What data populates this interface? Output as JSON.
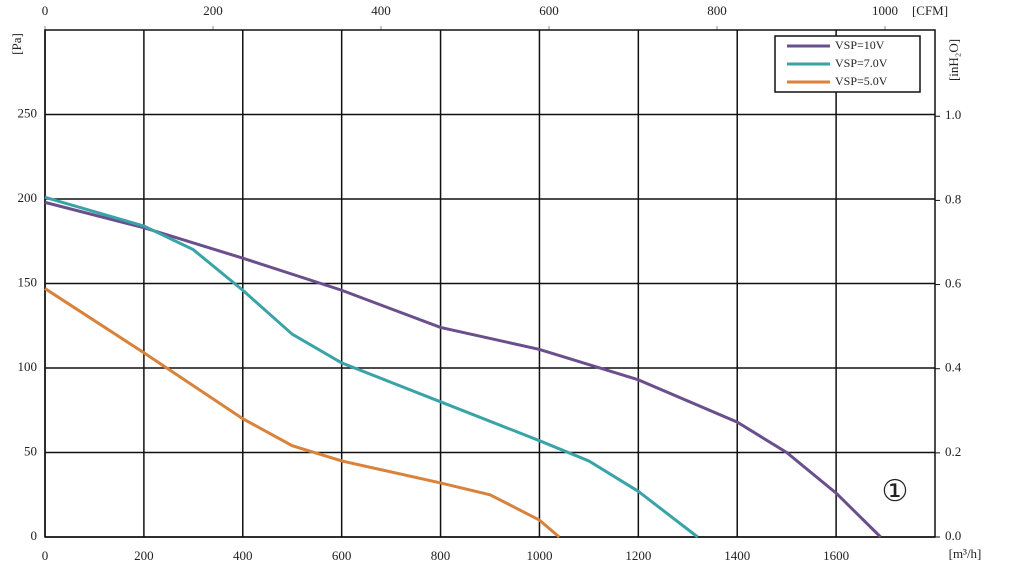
{
  "chart_data": {
    "type": "line",
    "x_label": "[m³/h]",
    "y_label": "[Pa]",
    "x2_label": "[CFM]",
    "y2_label": "[inH₂O]",
    "annotation": "①",
    "xlim": [
      0,
      1800
    ],
    "xticks": [
      0,
      200,
      400,
      600,
      800,
      1000,
      1200,
      1400,
      1600
    ],
    "ylim": [
      0,
      300
    ],
    "yticks": [
      0,
      50,
      100,
      150,
      200,
      250
    ],
    "x2lim": [
      0,
      1059.5
    ],
    "x2ticks": [
      0,
      200,
      400,
      600,
      800,
      1000
    ],
    "y2lim": [
      0,
      1.205
    ],
    "y2ticks": [
      {
        "value": 0,
        "label": "0.0"
      },
      {
        "value": 0.2,
        "label": "0.2"
      },
      {
        "value": 0.4,
        "label": "0.4"
      },
      {
        "value": 0.6,
        "label": "0.6"
      },
      {
        "value": 0.8,
        "label": "0.8"
      },
      {
        "value": 1,
        "label": "1.0"
      }
    ],
    "grid": true,
    "legend": "top-right",
    "series": [
      {
        "name": "VSP=10V",
        "color": "#6a4f8c",
        "x": [
          0,
          200,
          400,
          600,
          800,
          1000,
          1200,
          1400,
          1500,
          1600,
          1690
        ],
        "values": [
          198,
          183,
          165,
          146,
          124,
          111,
          93,
          68,
          50,
          26,
          0
        ]
      },
      {
        "name": "VSP=7.0V",
        "color": "#3aa3a8",
        "x": [
          0,
          200,
          300,
          400,
          500,
          600,
          800,
          1000,
          1100,
          1200,
          1320
        ],
        "values": [
          201,
          184,
          170,
          146,
          120,
          103,
          80,
          57,
          45,
          27,
          0
        ]
      },
      {
        "name": "VSP=5.0V",
        "color": "#d9823b",
        "x": [
          0,
          200,
          400,
          500,
          600,
          800,
          900,
          1000,
          1040
        ],
        "values": [
          147,
          109,
          70,
          54,
          45,
          32,
          25,
          10,
          0
        ]
      }
    ]
  }
}
